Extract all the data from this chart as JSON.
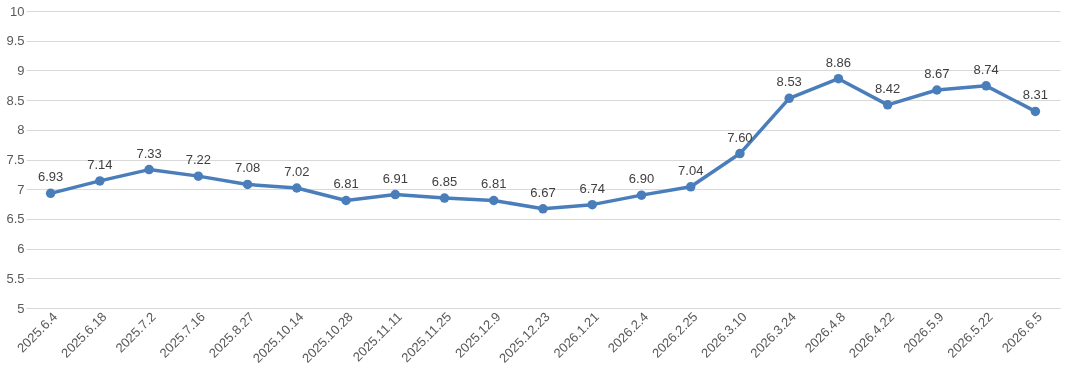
{
  "chart_data": {
    "type": "line",
    "categories": [
      "2025.6.4",
      "2025.6.18",
      "2025.7.2",
      "2025.7.16",
      "2025.8.27",
      "2025.10.14",
      "2025.10.28",
      "2025.11.11",
      "2025.11.25",
      "2025.12.9",
      "2025.12.23",
      "2026.1.21",
      "2026.2.4",
      "2026.2.25",
      "2026.3.10",
      "2026.3.24",
      "2026.4.8",
      "2026.4.22",
      "2026.5.9",
      "2026.5.22",
      "2026.6.5"
    ],
    "series": [
      {
        "color": "#4a7ebb",
        "values": [
          6.93,
          7.14,
          7.33,
          7.22,
          7.08,
          7.02,
          6.81,
          6.91,
          6.85,
          6.81,
          6.67,
          6.74,
          6.9,
          7.04,
          7.6,
          8.53,
          8.86,
          8.42,
          8.67,
          8.74,
          8.31
        ],
        "value_labels": [
          "6.93",
          "7.14",
          "7.33",
          "7.22",
          "7.08",
          "7.02",
          "6.81",
          "6.91",
          "6.85",
          "6.81",
          "6.67",
          "6.74",
          "6.90",
          "7.04",
          "7.60",
          "8.53",
          "8.86",
          "8.42",
          "8.67",
          "8.74",
          "8.31"
        ]
      }
    ],
    "ylim": [
      5,
      10
    ],
    "yticks": [
      5,
      5.5,
      6,
      6.5,
      7,
      7.5,
      8,
      8.5,
      9,
      9.5,
      10
    ],
    "grid": "y",
    "marker": "circle",
    "line_style": "solid"
  }
}
